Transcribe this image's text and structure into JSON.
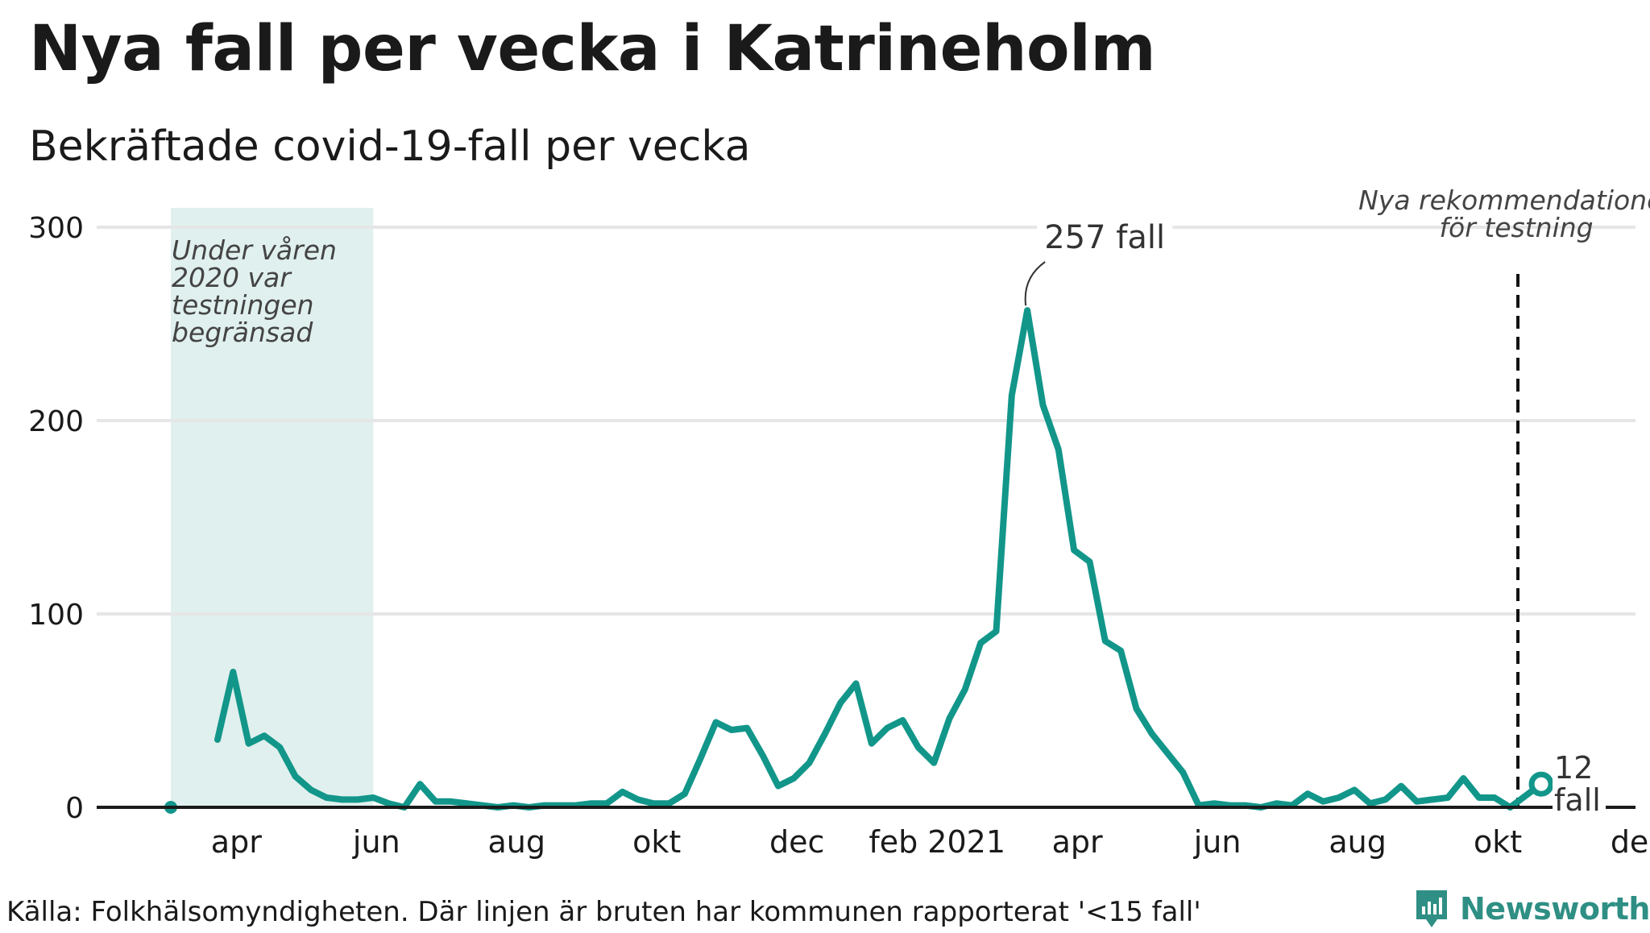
{
  "title": "Nya fall per vecka i Katrineholm",
  "subtitle": "Bekräftade covid-19-fall per vecka",
  "source": "Källa: Folkhälsomyndigheten. Där linjen är bruten har kommunen rapporterat '<15 fall'",
  "brand": {
    "name": "Newsworthy",
    "icon": "newsworthy-logo-icon",
    "color": "#2f8f84"
  },
  "colors": {
    "line": "#12968a",
    "shade": "#e0f0ee",
    "grid": "#e6e6e6",
    "axis": "#1a1a1a",
    "annotation": "#444444"
  },
  "chart_data": {
    "type": "line",
    "x_unit": "week",
    "x_start_date": "2020-03-16",
    "ylim": [
      0,
      300
    ],
    "y_ticks": [
      0,
      100,
      200,
      300
    ],
    "x_tick_labels": [
      {
        "label": "apr",
        "week": 4
      },
      {
        "label": "jun",
        "week": 13
      },
      {
        "label": "aug",
        "week": 22
      },
      {
        "label": "okt",
        "week": 31
      },
      {
        "label": "dec",
        "week": 40
      },
      {
        "label": "feb 2021",
        "week": 49
      },
      {
        "label": "apr",
        "week": 58
      },
      {
        "label": "jun",
        "week": 67
      },
      {
        "label": "aug",
        "week": 76
      },
      {
        "label": "okt",
        "week": 85
      },
      {
        "label": "dec",
        "week": 94
      }
    ],
    "series": [
      {
        "values": [
          {
            "week": 0,
            "value": 0
          },
          {
            "week": 3,
            "value": 35
          },
          {
            "week": 4,
            "value": 70
          },
          {
            "week": 5,
            "value": 33
          },
          {
            "week": 6,
            "value": 37
          },
          {
            "week": 7,
            "value": 31
          },
          {
            "week": 8,
            "value": 16
          },
          {
            "week": 9,
            "value": 9
          },
          {
            "week": 10,
            "value": 5
          },
          {
            "week": 11,
            "value": 4
          },
          {
            "week": 12,
            "value": 4
          },
          {
            "week": 13,
            "value": 5
          },
          {
            "week": 14,
            "value": 2
          },
          {
            "week": 15,
            "value": 0
          },
          {
            "week": 16,
            "value": 12
          },
          {
            "week": 17,
            "value": 3
          },
          {
            "week": 18,
            "value": 3
          },
          {
            "week": 19,
            "value": 2
          },
          {
            "week": 20,
            "value": 1
          },
          {
            "week": 21,
            "value": 0
          },
          {
            "week": 22,
            "value": 1
          },
          {
            "week": 23,
            "value": 0
          },
          {
            "week": 24,
            "value": 1
          },
          {
            "week": 25,
            "value": 1
          },
          {
            "week": 26,
            "value": 1
          },
          {
            "week": 27,
            "value": 2
          },
          {
            "week": 28,
            "value": 2
          },
          {
            "week": 29,
            "value": 8
          },
          {
            "week": 30,
            "value": 4
          },
          {
            "week": 31,
            "value": 2
          },
          {
            "week": 32,
            "value": 2
          },
          {
            "week": 33,
            "value": 7
          },
          {
            "week": 34,
            "value": 25
          },
          {
            "week": 35,
            "value": 44
          },
          {
            "week": 36,
            "value": 40
          },
          {
            "week": 37,
            "value": 41
          },
          {
            "week": 38,
            "value": 27
          },
          {
            "week": 39,
            "value": 11
          },
          {
            "week": 40,
            "value": 15
          },
          {
            "week": 41,
            "value": 23
          },
          {
            "week": 42,
            "value": 38
          },
          {
            "week": 43,
            "value": 54
          },
          {
            "week": 44,
            "value": 64
          },
          {
            "week": 45,
            "value": 33
          },
          {
            "week": 46,
            "value": 41
          },
          {
            "week": 47,
            "value": 45
          },
          {
            "week": 48,
            "value": 31
          },
          {
            "week": 49,
            "value": 23
          },
          {
            "week": 50,
            "value": 46
          },
          {
            "week": 51,
            "value": 61
          },
          {
            "week": 52,
            "value": 85
          },
          {
            "week": 53,
            "value": 91
          },
          {
            "week": 54,
            "value": 213
          },
          {
            "week": 55,
            "value": 257
          },
          {
            "week": 56,
            "value": 208
          },
          {
            "week": 57,
            "value": 185
          },
          {
            "week": 58,
            "value": 133
          },
          {
            "week": 59,
            "value": 127
          },
          {
            "week": 60,
            "value": 86
          },
          {
            "week": 61,
            "value": 81
          },
          {
            "week": 62,
            "value": 51
          },
          {
            "week": 63,
            "value": 38
          },
          {
            "week": 64,
            "value": 28
          },
          {
            "week": 65,
            "value": 18
          },
          {
            "week": 66,
            "value": 1
          },
          {
            "week": 67,
            "value": 2
          },
          {
            "week": 68,
            "value": 1
          },
          {
            "week": 69,
            "value": 1
          },
          {
            "week": 70,
            "value": 0
          },
          {
            "week": 71,
            "value": 2
          },
          {
            "week": 72,
            "value": 1
          },
          {
            "week": 73,
            "value": 7
          },
          {
            "week": 74,
            "value": 3
          },
          {
            "week": 75,
            "value": 5
          },
          {
            "week": 76,
            "value": 9
          },
          {
            "week": 77,
            "value": 2
          },
          {
            "week": 78,
            "value": 4
          },
          {
            "week": 79,
            "value": 11
          },
          {
            "week": 80,
            "value": 3
          },
          {
            "week": 81,
            "value": 4
          },
          {
            "week": 82,
            "value": 5
          },
          {
            "week": 83,
            "value": 15
          },
          {
            "week": 84,
            "value": 5
          },
          {
            "week": 85,
            "value": 5
          },
          {
            "week": 86,
            "value": 0
          },
          {
            "week": 87,
            "value": 6
          },
          {
            "week": 88,
            "value": 12
          }
        ]
      }
    ],
    "shaded_region": {
      "from_week": 0,
      "to_week": 13,
      "text": [
        "Under våren",
        "2020 var",
        "testningen",
        "begränsad"
      ]
    },
    "vertical_marker": {
      "week": 86.5,
      "style": "dashed",
      "text": [
        "Nya rekommendationer",
        "för testning"
      ]
    },
    "annotations": [
      {
        "week": 55,
        "value": 257,
        "text": "257 fall"
      },
      {
        "week": 88,
        "value": 12,
        "text": [
          "12",
          "fall"
        ]
      }
    ],
    "grid": true,
    "legend": "none"
  }
}
